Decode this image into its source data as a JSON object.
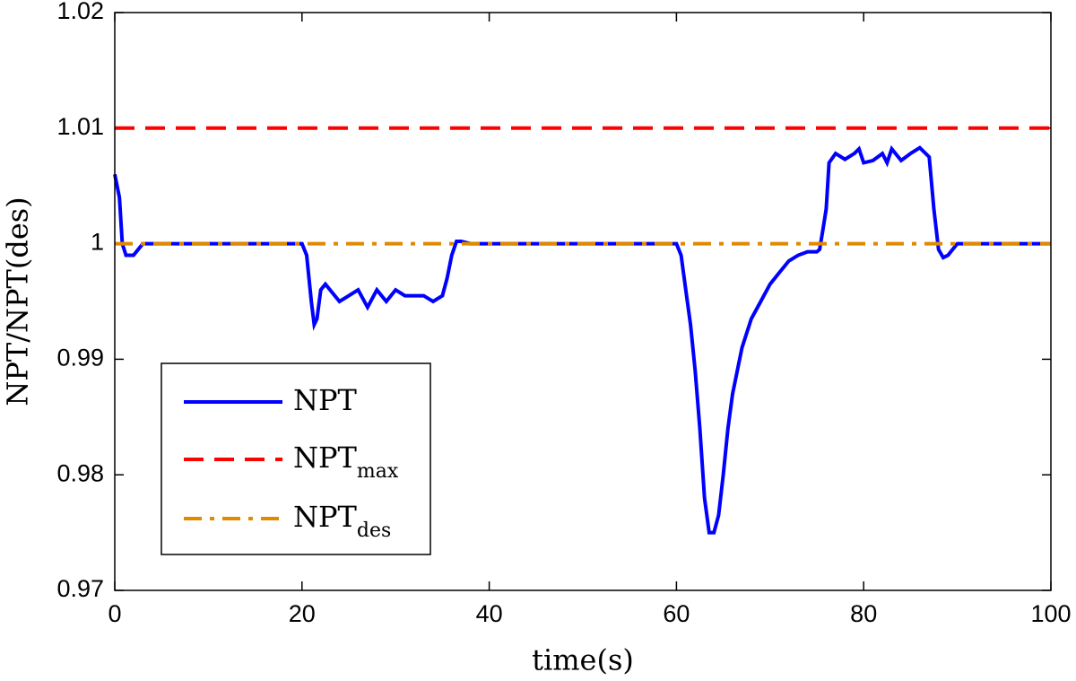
{
  "chart_data": {
    "type": "line",
    "xlabel": "time(s)",
    "ylabel": "NPT/NPT(des)",
    "xlim": [
      0,
      100
    ],
    "xticks": [
      0,
      20,
      40,
      60,
      80,
      100
    ],
    "ylim": [
      0.97,
      1.02
    ],
    "yticks": [
      0.97,
      0.98,
      0.99,
      1,
      1.01,
      1.02
    ],
    "series": [
      {
        "name": "NPT",
        "color": "#0000ff",
        "style": "solid",
        "x": [
          0,
          0.5,
          0.8,
          1.2,
          2,
          3,
          20,
          20.5,
          21,
          21.3,
          21.6,
          22,
          22.5,
          23,
          24,
          25,
          26,
          27,
          28,
          29,
          30,
          31,
          32,
          33,
          34,
          35,
          35.5,
          36,
          36.5,
          37,
          38,
          60,
          60.5,
          61,
          61.5,
          62,
          62.5,
          63,
          63.5,
          64,
          64.5,
          65,
          65.5,
          66,
          67,
          68,
          69,
          70,
          71,
          72,
          73,
          74,
          75,
          75.3,
          75.6,
          76,
          76.3,
          77,
          78,
          79,
          79.5,
          80,
          81,
          82,
          82.5,
          83,
          84,
          85,
          86,
          87,
          87.5,
          88,
          88.5,
          89,
          90,
          100
        ],
        "values": [
          1.006,
          1.004,
          1.0,
          0.999,
          0.999,
          1.0,
          1.0,
          0.999,
          0.995,
          0.993,
          0.9935,
          0.996,
          0.9965,
          0.996,
          0.995,
          0.9955,
          0.996,
          0.9945,
          0.996,
          0.995,
          0.996,
          0.9955,
          0.9955,
          0.9955,
          0.995,
          0.9955,
          0.997,
          0.999,
          1.0002,
          1.0002,
          1.0,
          1.0,
          0.999,
          0.996,
          0.993,
          0.989,
          0.984,
          0.978,
          0.975,
          0.975,
          0.9765,
          0.98,
          0.984,
          0.987,
          0.991,
          0.9935,
          0.995,
          0.9965,
          0.9975,
          0.9985,
          0.999,
          0.9993,
          0.9993,
          0.9995,
          1.001,
          1.003,
          1.007,
          1.0078,
          1.0073,
          1.0078,
          1.0082,
          1.007,
          1.0072,
          1.0078,
          1.007,
          1.0082,
          1.0072,
          1.0078,
          1.0083,
          1.0075,
          1.003,
          0.9995,
          0.9988,
          0.999,
          1.0,
          1.0
        ]
      },
      {
        "name": "NPT",
        "subscript": "max",
        "color": "#ff0000",
        "style": "dashed",
        "x": [
          0,
          100
        ],
        "values": [
          1.01,
          1.01
        ]
      },
      {
        "name": "NPT",
        "subscript": "des",
        "color": "#e08a00",
        "style": "dashdot",
        "x": [
          0,
          100
        ],
        "values": [
          1,
          1
        ]
      }
    ],
    "legend": "lower left"
  }
}
